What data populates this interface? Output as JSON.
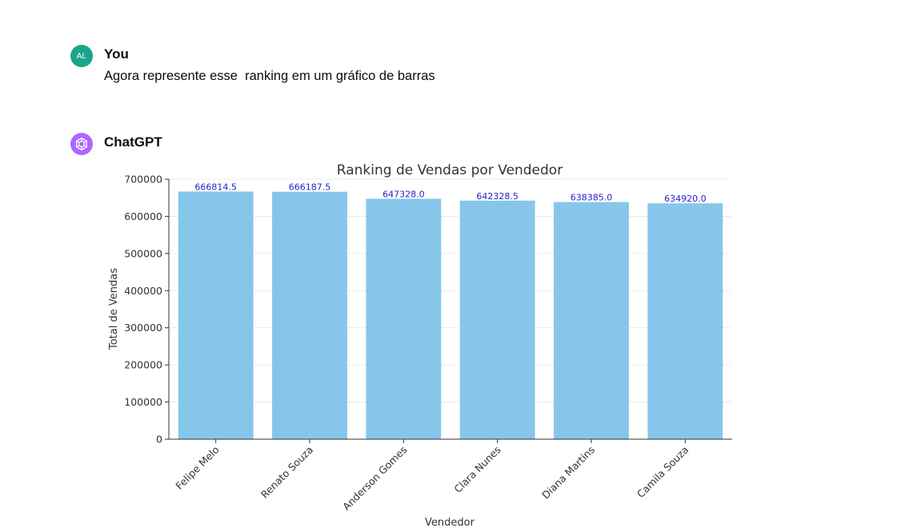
{
  "conversation": {
    "user": {
      "initials": "AL",
      "name": "You",
      "message": "Agora represente esse  ranking em um gráfico de barras"
    },
    "assistant": {
      "name": "ChatGPT",
      "icon": "openai-logo-icon"
    }
  },
  "colors": {
    "user_avatar": "#19a58a",
    "assistant_avatar": "#ab68ff",
    "bar": "#87c6eb",
    "data_label": "#2222c8"
  },
  "chart_data": {
    "type": "bar",
    "title": "Ranking de Vendas por Vendedor",
    "xlabel": "Vendedor",
    "ylabel": "Total de Vendas",
    "categories": [
      "Felipe Melo",
      "Renato Souza",
      "Anderson Gomes",
      "Clara Nunes",
      "Diana Martins",
      "Camila Souza"
    ],
    "values": [
      666814.5,
      666187.5,
      647328.0,
      642328.5,
      638385.0,
      634920.0
    ],
    "value_labels": [
      "666814.5",
      "666187.5",
      "647328.0",
      "642328.5",
      "638385.0",
      "634920.0"
    ],
    "ylim": [
      0,
      700000
    ],
    "yticks": [
      0,
      100000,
      200000,
      300000,
      400000,
      500000,
      600000,
      700000
    ],
    "ytick_labels": [
      "0",
      "100000",
      "200000",
      "300000",
      "400000",
      "500000",
      "600000",
      "700000"
    ],
    "grid": "y-dashed",
    "legend": "none"
  }
}
